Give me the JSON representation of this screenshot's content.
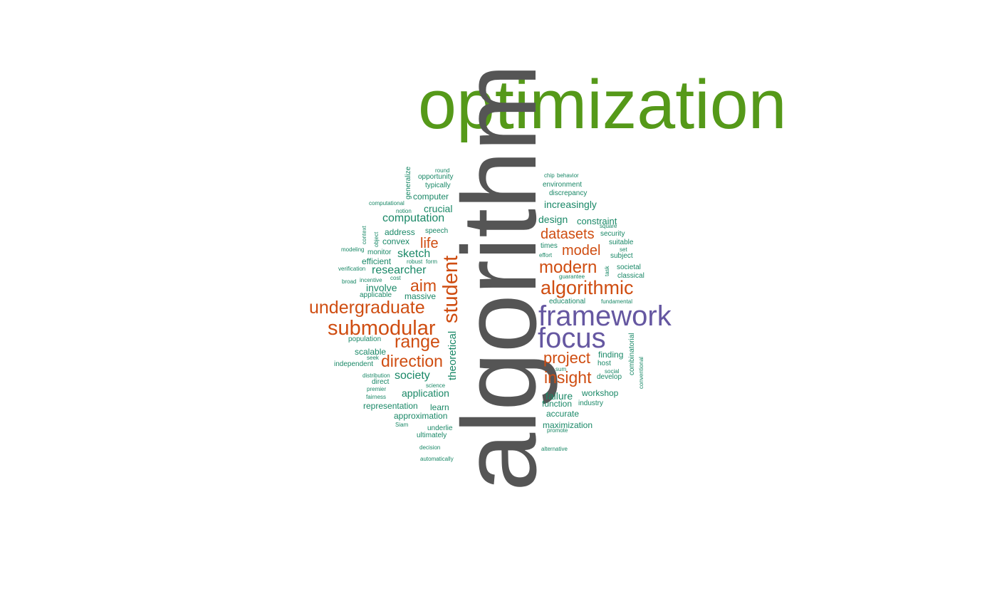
{
  "palette": {
    "dark": "#555555",
    "green": "#559919",
    "purple": "#6557a1",
    "orange": "#cf4d11",
    "teal": "#1a8867"
  },
  "words": {
    "optimization": "optimization",
    "algorithm": "algorithm",
    "framework": "framework",
    "focus": "focus",
    "student": "student",
    "undergraduate": "undergraduate",
    "submodular": "submodular",
    "algorithmic": "algorithmic",
    "modern": "modern",
    "range": "range",
    "direction": "direction",
    "aim": "aim",
    "datasets": "datasets",
    "model": "model",
    "project": "project",
    "insight": "insight",
    "life": "life",
    "computation": "computation",
    "theoretical": "theoretical",
    "researcher": "researcher",
    "sketch": "sketch",
    "society": "society",
    "application": "application",
    "increasingly": "increasingly",
    "crucial": "crucial",
    "involve": "involve",
    "failure": "failure",
    "design": "design",
    "constraint": "constraint",
    "computer": "computer",
    "address": "address",
    "convex": "convex",
    "efficient": "efficient",
    "massive": "massive",
    "scalable": "scalable",
    "approximation": "approximation",
    "representation": "representation",
    "learn": "learn",
    "workshop": "workshop",
    "finding": "finding",
    "function": "function",
    "accurate": "accurate",
    "maximization": "maximization",
    "environment": "environment",
    "discrepancy": "discrepancy",
    "opportunity": "opportunity",
    "typically": "typically",
    "independent": "independent",
    "applicable": "applicable",
    "monitor": "monitor",
    "speech": "speech",
    "security": "security",
    "suitable": "suitable",
    "subject": "subject",
    "societal": "societal",
    "classical": "classical",
    "educational": "educational",
    "host": "host",
    "develop": "develop",
    "industry": "industry",
    "population": "population",
    "direct": "direct",
    "underlie": "underlie",
    "ultimately": "ultimately",
    "times": "times",
    "combinatorial": "combinatorial",
    "generalize": "generalize",
    "round": "round",
    "chip": "chip",
    "behavior": "behavior",
    "computational": "computational",
    "notion": "notion",
    "context": "context",
    "object": "object",
    "modeling": "modeling",
    "verification": "verification",
    "robust": "robust",
    "form": "form",
    "incentive": "incentive",
    "cost": "cost",
    "broad": "broad",
    "seek": "seek",
    "distribution": "distribution",
    "premier": "premier",
    "fairness": "fairness",
    "science": "science",
    "Siam": "Siam",
    "decision": "decision",
    "automatically": "automatically",
    "square": "square",
    "set": "set",
    "effort": "effort",
    "task": "task",
    "guarantee": "guarantee",
    "fundamental": "fundamental",
    "sum": "sum",
    "social": "social",
    "conventional": "conventional",
    "promote": "promote",
    "alternative": "alternative"
  }
}
